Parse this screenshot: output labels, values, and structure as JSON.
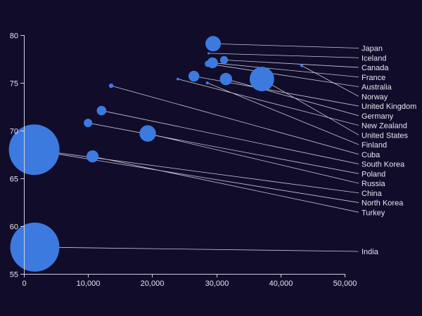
{
  "chart_data": {
    "type": "scatter",
    "title": "",
    "xlabel": "",
    "ylabel": "",
    "xlim": [
      0,
      50000
    ],
    "ylim": [
      55,
      80
    ],
    "x_ticks": [
      "0",
      "10,000",
      "20,000",
      "30,000",
      "40,000",
      "50,000"
    ],
    "y_ticks": [
      "55",
      "60",
      "65",
      "70",
      "75",
      "80"
    ],
    "grid": false,
    "legend": "none",
    "bubble_color": "#3d7ae0",
    "background": "#100c2a",
    "points": [
      {
        "name": "Japan",
        "x": 29500,
        "y": 79.1,
        "size": 127
      },
      {
        "name": "Iceland",
        "x": 28800,
        "y": 78.1,
        "size": 0.3
      },
      {
        "name": "Canada",
        "x": 31200,
        "y": 77.4,
        "size": 34
      },
      {
        "name": "France",
        "x": 29400,
        "y": 77.1,
        "size": 63
      },
      {
        "name": "Australia",
        "x": 28700,
        "y": 77.0,
        "size": 23
      },
      {
        "name": "Norway",
        "x": 43300,
        "y": 76.8,
        "size": 5
      },
      {
        "name": "United Kingdom",
        "x": 26500,
        "y": 75.7,
        "size": 63
      },
      {
        "name": "Germany",
        "x": 31500,
        "y": 75.4,
        "size": 81
      },
      {
        "name": "New Zealand",
        "x": 24000,
        "y": 75.4,
        "size": 4
      },
      {
        "name": "United States",
        "x": 37100,
        "y": 75.4,
        "size": 320
      },
      {
        "name": "Finland",
        "x": 28600,
        "y": 75.0,
        "size": 5
      },
      {
        "name": "Cuba",
        "x": 13600,
        "y": 74.7,
        "size": 11
      },
      {
        "name": "South Korea",
        "x": 12100,
        "y": 72.1,
        "size": 48
      },
      {
        "name": "Poland",
        "x": 10000,
        "y": 70.8,
        "size": 38
      },
      {
        "name": "Russia",
        "x": 19300,
        "y": 69.7,
        "size": 144
      },
      {
        "name": "China",
        "x": 1600,
        "y": 68.0,
        "size": 1370
      },
      {
        "name": "North Korea",
        "x": 2000,
        "y": 67.9,
        "size": 24
      },
      {
        "name": "Turkey",
        "x": 10700,
        "y": 67.3,
        "size": 78
      },
      {
        "name": "India",
        "x": 1700,
        "y": 57.8,
        "size": 1290
      }
    ]
  }
}
